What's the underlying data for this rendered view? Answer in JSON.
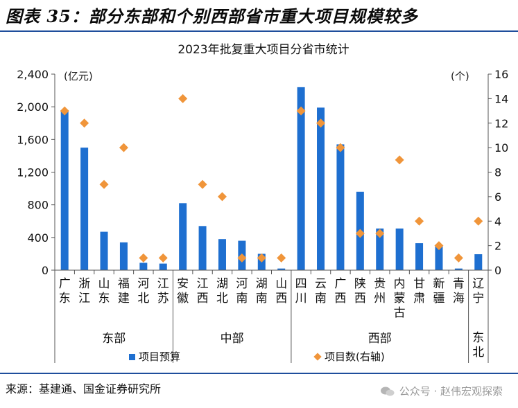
{
  "figure_title": "图表 35：部分东部和个别西部省市重大项目规模较多",
  "source": "来源：基建通、国金证券研究所",
  "watermark": "公众号 · 赵伟宏观探索",
  "colors": {
    "bar": "#1e6fd0",
    "marker": "#f0953a",
    "rule": "#1f4e9c"
  },
  "chart_data": {
    "type": "bar",
    "title": "2023年批复重大项目分省市统计",
    "left_unit": "(亿元)",
    "right_unit": "(个)",
    "categories": [
      "广东",
      "浙江",
      "山东",
      "福建",
      "河北",
      "江苏",
      "安徽",
      "江西",
      "湖北",
      "河南",
      "湖南",
      "山西",
      "四川",
      "云南",
      "广西",
      "陕西",
      "贵州",
      "内蒙古",
      "甘肃",
      "新疆",
      "青海",
      "辽宁"
    ],
    "category_labels": [
      [
        "广",
        "东"
      ],
      [
        "浙",
        "江"
      ],
      [
        "山",
        "东"
      ],
      [
        "福",
        "建"
      ],
      [
        "河",
        "北"
      ],
      [
        "江",
        "苏"
      ],
      [
        "安",
        "徽"
      ],
      [
        "江",
        "西"
      ],
      [
        "湖",
        "北"
      ],
      [
        "河",
        "南"
      ],
      [
        "湖",
        "南"
      ],
      [
        "山",
        "西"
      ],
      [
        "四",
        "川"
      ],
      [
        "云",
        "南"
      ],
      [
        "广",
        "西"
      ],
      [
        "陕",
        "西"
      ],
      [
        "贵",
        "州"
      ],
      [
        "内",
        "蒙",
        "古"
      ],
      [
        "甘",
        "肃"
      ],
      [
        "新",
        "疆"
      ],
      [
        "青",
        "海"
      ],
      [
        "辽",
        "宁"
      ]
    ],
    "groups": [
      {
        "label": "东部",
        "start": 0,
        "end": 5
      },
      {
        "label": "中部",
        "start": 6,
        "end": 11
      },
      {
        "label": "西部",
        "start": 12,
        "end": 20
      },
      {
        "label": "东北",
        "start": 21,
        "end": 21
      }
    ],
    "series": [
      {
        "name": "项目预算",
        "type": "bar",
        "axis": "left",
        "values": [
          1960,
          1500,
          470,
          340,
          90,
          80,
          820,
          540,
          380,
          360,
          200,
          20,
          2240,
          1990,
          1540,
          960,
          510,
          510,
          330,
          310,
          20,
          195
        ]
      },
      {
        "name": "项目数(右轴)",
        "type": "scatter",
        "axis": "right",
        "values": [
          13,
          12,
          7,
          10,
          1,
          1,
          14,
          7,
          6,
          1,
          1,
          1,
          13,
          12,
          10,
          3,
          3,
          9,
          4,
          2,
          1,
          4
        ]
      }
    ],
    "left_ticks": [
      "0",
      "400",
      "800",
      "1,200",
      "1,600",
      "2,000",
      "2,400"
    ],
    "right_ticks": [
      "0",
      "2",
      "4",
      "6",
      "8",
      "10",
      "12",
      "14",
      "16"
    ],
    "ylim_left": [
      0,
      2400
    ],
    "ylim_right": [
      0,
      16
    ]
  }
}
